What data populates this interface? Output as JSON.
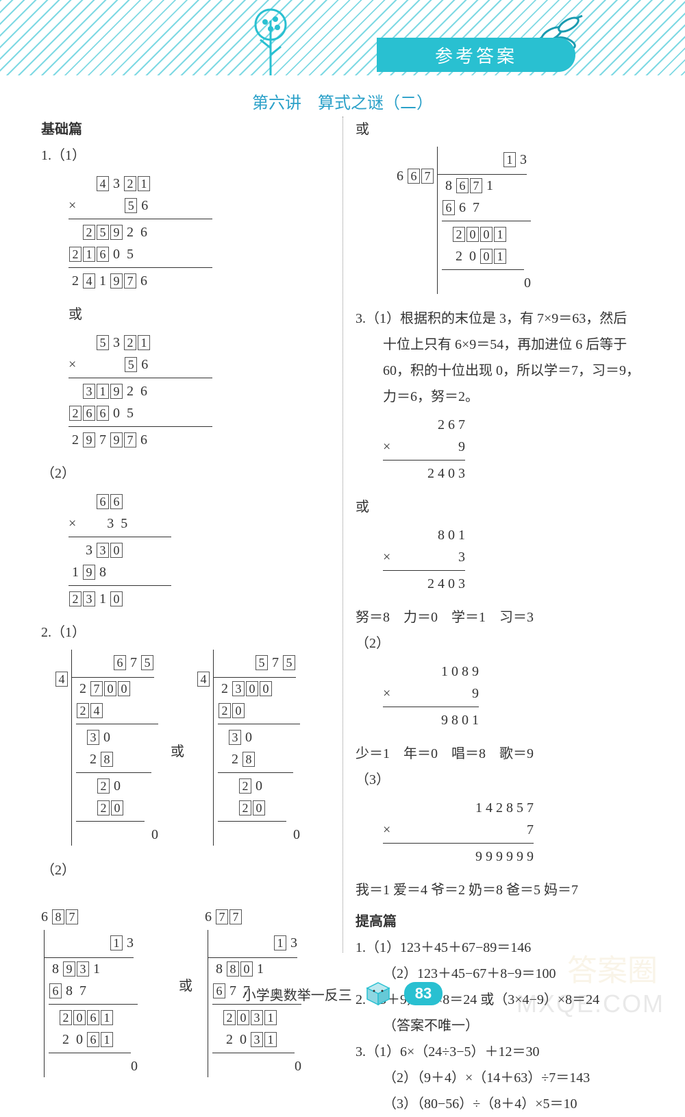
{
  "header": {
    "banner": "参考答案",
    "lesson": "第六讲　算式之谜（二）"
  },
  "left": {
    "section": "基础篇",
    "p1_label": "1.（1）",
    "p1a": {
      "r1": [
        "4",
        "3",
        "2",
        "1"
      ],
      "r1_boxed": [
        true,
        false,
        true,
        true
      ],
      "mul": "×",
      "r2": [
        "5",
        "6"
      ],
      "r2_boxed": [
        true,
        false
      ],
      "r3": [
        "2",
        "5",
        "9",
        "2",
        "6"
      ],
      "r3_boxed": [
        true,
        true,
        true,
        false,
        false
      ],
      "r4": [
        "2",
        "1",
        "6",
        "0",
        "5"
      ],
      "r4_boxed": [
        true,
        true,
        true,
        false,
        false
      ],
      "r5": [
        "2",
        "4",
        "1",
        "9",
        "7",
        "6"
      ],
      "r5_boxed": [
        false,
        true,
        false,
        true,
        true,
        false
      ]
    },
    "or": "或",
    "p1b": {
      "r1": [
        "5",
        "3",
        "2",
        "1"
      ],
      "r1_boxed": [
        true,
        false,
        true,
        true
      ],
      "r2": [
        "5",
        "6"
      ],
      "r2_boxed": [
        true,
        false
      ],
      "r3": [
        "3",
        "1",
        "9",
        "2",
        "6"
      ],
      "r3_boxed": [
        true,
        true,
        true,
        false,
        false
      ],
      "r4": [
        "2",
        "6",
        "6",
        "0",
        "5"
      ],
      "r4_boxed": [
        true,
        true,
        true,
        false,
        false
      ],
      "r5": [
        "2",
        "9",
        "7",
        "9",
        "7",
        "6"
      ],
      "r5_boxed": [
        false,
        true,
        false,
        true,
        true,
        false
      ]
    },
    "p1_2": "（2）",
    "p1c": {
      "r1": [
        "6",
        "6"
      ],
      "r1_boxed": [
        true,
        true
      ],
      "r2": [
        "3",
        "5"
      ],
      "r3": [
        "3",
        "3",
        "0"
      ],
      "r3_boxed": [
        false,
        true,
        true
      ],
      "r4": [
        "1",
        "9",
        "8"
      ],
      "r4_boxed": [
        false,
        true,
        false
      ],
      "r5": [
        "2",
        "3",
        "1",
        "0"
      ],
      "r5_boxed": [
        true,
        true,
        false,
        true
      ]
    },
    "p2_label": "2.（1）",
    "div1a": {
      "q": [
        "6",
        "7",
        "5"
      ],
      "q_boxed": [
        true,
        false,
        true
      ],
      "dvr": [
        "4"
      ],
      "dvr_boxed": [
        true
      ],
      "dvd": [
        "2",
        "7",
        "0",
        "0"
      ],
      "dvd_boxed": [
        false,
        true,
        true,
        true
      ],
      "l1": [
        "2",
        "4"
      ],
      "l1_boxed": [
        true,
        true
      ],
      "l2": [
        "3",
        "0"
      ],
      "l2_boxed": [
        true,
        false
      ],
      "l3": [
        "2",
        "8"
      ],
      "l3_boxed": [
        false,
        true
      ],
      "l4": [
        "2",
        "0"
      ],
      "l4_boxed": [
        true,
        false
      ],
      "l5": [
        "2",
        "0"
      ],
      "l5_boxed": [
        true,
        true
      ],
      "rem": "0"
    },
    "div1b": {
      "q": [
        "5",
        "7",
        "5"
      ],
      "q_boxed": [
        true,
        false,
        true
      ],
      "dvr": [
        "4"
      ],
      "dvr_boxed": [
        true
      ],
      "dvd": [
        "2",
        "3",
        "0",
        "0"
      ],
      "dvd_boxed": [
        false,
        true,
        true,
        true
      ],
      "l1": [
        "2",
        "0"
      ],
      "l1_boxed": [
        true,
        true
      ],
      "l2": [
        "3",
        "0"
      ],
      "l2_boxed": [
        true,
        false
      ],
      "l3": [
        "2",
        "8"
      ],
      "l3_boxed": [
        false,
        true
      ],
      "l4": [
        "2",
        "0"
      ],
      "l4_boxed": [
        true,
        false
      ],
      "l5": [
        "2",
        "0"
      ],
      "l5_boxed": [
        true,
        true
      ],
      "rem": "0"
    },
    "p2_2": "（2）",
    "div2a": {
      "q": [
        "1",
        "3"
      ],
      "q_boxed": [
        true,
        false
      ],
      "dvr": [
        "6",
        "8",
        "7"
      ],
      "dvr_boxed": [
        false,
        true,
        true
      ],
      "dvd": [
        "8",
        "9",
        "3",
        "1"
      ],
      "dvd_boxed": [
        false,
        true,
        true,
        false
      ],
      "l1": [
        "6",
        "8",
        "7"
      ],
      "l1_boxed": [
        true,
        false,
        false
      ],
      "l2": [
        "2",
        "0",
        "6",
        "1"
      ],
      "l2_boxed": [
        true,
        true,
        true,
        true
      ],
      "l3": [
        "2",
        "0",
        "6",
        "1"
      ],
      "l3_boxed": [
        false,
        false,
        true,
        true
      ],
      "rem": "0"
    },
    "div2b": {
      "q": [
        "1",
        "3"
      ],
      "q_boxed": [
        true,
        false
      ],
      "dvr": [
        "6",
        "7",
        "7"
      ],
      "dvr_boxed": [
        false,
        true,
        true
      ],
      "dvd": [
        "8",
        "8",
        "0",
        "1"
      ],
      "dvd_boxed": [
        false,
        true,
        true,
        false
      ],
      "l1": [
        "6",
        "7",
        "7"
      ],
      "l1_boxed": [
        true,
        false,
        false
      ],
      "l2": [
        "2",
        "0",
        "3",
        "1"
      ],
      "l2_boxed": [
        true,
        true,
        true,
        true
      ],
      "l3": [
        "2",
        "0",
        "3",
        "1"
      ],
      "l3_boxed": [
        false,
        false,
        true,
        true
      ],
      "rem": "0"
    }
  },
  "right": {
    "or": "或",
    "divR": {
      "q": [
        "1",
        "3"
      ],
      "q_boxed": [
        true,
        false
      ],
      "dvr": [
        "6",
        "6",
        "7"
      ],
      "dvr_boxed": [
        false,
        true,
        true
      ],
      "dvd": [
        "8",
        "6",
        "7",
        "1"
      ],
      "dvd_boxed": [
        false,
        true,
        true,
        false
      ],
      "l1": [
        "6",
        "6",
        "7"
      ],
      "l1_boxed": [
        true,
        false,
        false
      ],
      "l2": [
        "2",
        "0",
        "0",
        "1"
      ],
      "l2_boxed": [
        true,
        true,
        true,
        true
      ],
      "l3": [
        "2",
        "0",
        "0",
        "1"
      ],
      "l3_boxed": [
        false,
        false,
        true,
        true
      ],
      "rem": "0"
    },
    "p3_text1": "3.（1）根据积的末位是 3，有 7×9＝63，然后",
    "p3_text2": "十位上只有 6×9＝54，再加进位 6 后等于",
    "p3_text3": "60，积的十位出现 0，所以学＝7，习＝9，",
    "p3_text4": "力＝6，努＝2。",
    "m1": {
      "r1": "2 6 7",
      "op": "×",
      "r2": "9",
      "r3": "2 4 0 3"
    },
    "m2": {
      "r1": "8 0 1",
      "op": "×",
      "r2": "3",
      "r3": "2 4 0 3"
    },
    "m2_note": "努＝8　力＝0　学＝1　习＝3",
    "p3_2": "（2）",
    "m3": {
      "r1": "1 0 8 9",
      "op": "×",
      "r2": "9",
      "r3": "9 8 0 1"
    },
    "m3_note": "少＝1　年＝0　唱＝8　歌＝9",
    "p3_3": "（3）",
    "m4": {
      "r1": "1 4 2 8 5 7",
      "op": "×",
      "r2": "7",
      "r3": "9 9 9 9 9 9"
    },
    "m4_note": "我＝1 爱＝4 爷＝2 奶＝8 爸＝5 妈＝7",
    "adv": "提高篇",
    "adv1a": "1.（1）123＋45＋67−89＝146",
    "adv1b": "（2）123＋45−67＋8−9＝100",
    "adv2": "2.（3＋9）÷4×8＝24 或（3×4−9）×8＝24",
    "adv2b": "（答案不唯一）",
    "adv3a": "3.（1）6×（24÷3−5）＋12＝30",
    "adv3b": "（2）（9＋4）×（14＋63）÷7＝143",
    "adv3c": "（3）（80−56）÷（8＋4）×5＝10"
  },
  "footer": {
    "book": "小学奥数举一反三",
    "page": "83"
  },
  "colors": {
    "primary": "#29c0d1",
    "title": "#2aa0c8"
  }
}
